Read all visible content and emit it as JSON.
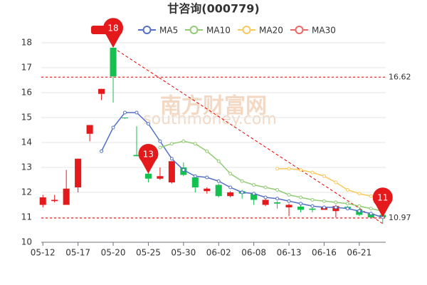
{
  "chart_data": {
    "type": "candlestick",
    "title": "甘咨询(000779)",
    "watermark": [
      "南方财富网",
      "southmoney.com"
    ],
    "categories": [
      "05-12",
      null,
      null,
      "05-17",
      null,
      null,
      "05-20",
      null,
      null,
      "05-25",
      null,
      null,
      "05-30",
      null,
      null,
      "06-02",
      null,
      null,
      "06-08",
      null,
      null,
      "06-13",
      null,
      null,
      "06-16",
      null,
      null,
      "06-21",
      null,
      null
    ],
    "candles": {
      "name": "K",
      "up_color": "#e3191c",
      "down_color": "#14c150",
      "open": [
        11.5,
        11.65,
        11.5,
        12.2,
        14.35,
        15.95,
        17.8,
        15.0,
        13.5,
        12.75,
        12.55,
        12.4,
        13.0,
        12.6,
        12.05,
        12.3,
        11.85,
        12.05,
        11.95,
        11.5,
        11.6,
        11.4,
        11.43,
        11.35,
        11.3,
        11.25,
        11.42,
        11.3,
        11.15,
        11.1
      ],
      "high": [
        11.9,
        11.9,
        12.9,
        13.35,
        14.7,
        16.15,
        17.8,
        15.0,
        14.65,
        12.8,
        13.0,
        13.25,
        13.2,
        12.65,
        12.2,
        12.35,
        12.05,
        12.1,
        12.0,
        11.75,
        11.65,
        11.55,
        11.5,
        11.4,
        11.45,
        11.5,
        11.45,
        11.35,
        11.2,
        11.15
      ],
      "low": [
        11.4,
        11.6,
        11.5,
        12.0,
        14.05,
        15.7,
        15.6,
        14.95,
        13.45,
        12.4,
        12.5,
        12.35,
        12.65,
        12.0,
        11.95,
        11.8,
        11.8,
        11.75,
        11.5,
        11.45,
        11.35,
        11.05,
        11.2,
        11.2,
        11.3,
        11.0,
        11.3,
        11.05,
        10.95,
        10.75
      ],
      "close": [
        11.8,
        11.7,
        12.15,
        13.35,
        14.7,
        16.15,
        16.65,
        14.97,
        13.45,
        12.55,
        12.65,
        13.25,
        12.7,
        12.2,
        12.15,
        11.85,
        12.0,
        11.95,
        11.7,
        11.7,
        11.55,
        11.5,
        11.3,
        11.3,
        11.4,
        11.45,
        11.35,
        11.1,
        11.0,
        11.0
      ]
    },
    "series": [
      {
        "name": "MA5",
        "color": "#5470c6",
        "values": [
          null,
          null,
          null,
          null,
          null,
          13.65,
          14.6,
          15.2,
          15.2,
          14.75,
          14.05,
          13.35,
          12.9,
          12.65,
          12.6,
          12.45,
          12.2,
          12.0,
          11.95,
          11.8,
          11.75,
          11.65,
          11.55,
          11.45,
          11.4,
          11.4,
          11.35,
          11.25,
          11.15,
          11.0
        ]
      },
      {
        "name": "MA10",
        "color": "#91cc75",
        "values": [
          null,
          null,
          null,
          null,
          null,
          null,
          null,
          null,
          null,
          null,
          13.8,
          13.95,
          14.05,
          13.95,
          13.65,
          13.25,
          12.75,
          12.45,
          12.3,
          12.2,
          12.1,
          11.9,
          11.8,
          11.7,
          11.65,
          11.6,
          11.55,
          11.45,
          11.35,
          11.25
        ]
      },
      {
        "name": "MA20",
        "color": "#fac858",
        "values": [
          null,
          null,
          null,
          null,
          null,
          null,
          null,
          null,
          null,
          null,
          null,
          null,
          null,
          null,
          null,
          null,
          null,
          null,
          null,
          null,
          12.95,
          12.95,
          12.9,
          12.8,
          12.65,
          12.4,
          12.1,
          11.95,
          11.85,
          11.75
        ]
      },
      {
        "name": "MA30",
        "color": "#ee6666",
        "values": [
          null,
          null,
          null,
          null,
          null,
          null,
          null,
          null,
          null,
          null,
          null,
          null,
          null,
          null,
          null,
          null,
          null,
          null,
          null,
          null,
          null,
          null,
          null,
          null,
          null,
          null,
          null,
          null,
          null,
          null
        ]
      }
    ],
    "ylim": [
      10,
      18
    ],
    "yticks": [
      10,
      11,
      12,
      13,
      14,
      15,
      16,
      17,
      18
    ],
    "grid": true,
    "reference_lines": [
      16.62,
      10.97
    ],
    "pins": [
      {
        "label": "18",
        "at": 6,
        "value": 17.8
      },
      {
        "label": "13",
        "at": 9,
        "value": 12.75
      },
      {
        "label": "11",
        "at": 29,
        "value": 11.0
      }
    ],
    "trendline": {
      "from": [
        6,
        17.8
      ],
      "to": [
        29,
        10.75
      ]
    }
  }
}
